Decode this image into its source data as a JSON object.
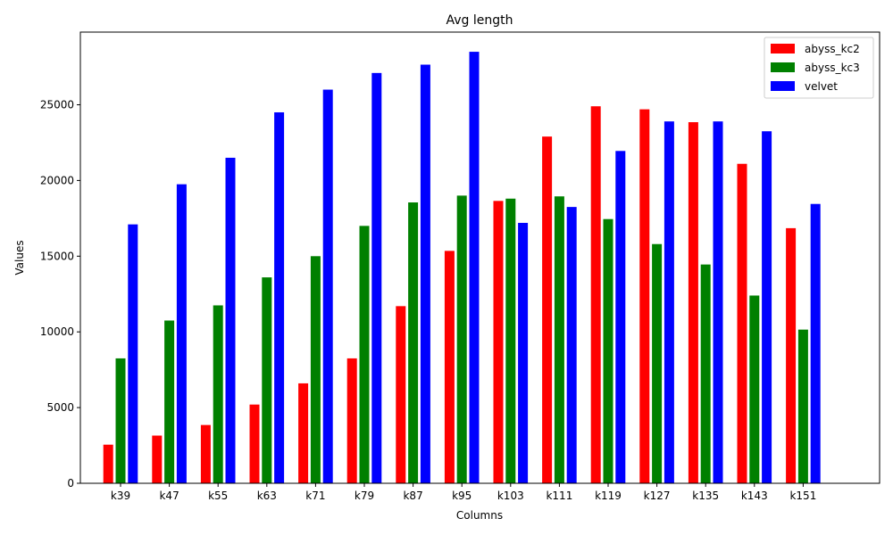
{
  "chart_data": {
    "type": "bar",
    "title": "Avg length",
    "xlabel": "Columns",
    "ylabel": "Values",
    "ylim": [
      0,
      29800
    ],
    "yticks": [
      0,
      5000,
      10000,
      15000,
      20000,
      25000
    ],
    "grid": false,
    "legend_position": "top-right",
    "categories": [
      "k39",
      "k47",
      "k55",
      "k63",
      "k71",
      "k79",
      "k87",
      "k95",
      "k103",
      "k111",
      "k119",
      "k127",
      "k135",
      "k143",
      "k151"
    ],
    "series": [
      {
        "name": "abyss_kc2",
        "color": "#ff0000",
        "values": [
          2550,
          3150,
          3850,
          5200,
          6600,
          8250,
          11700,
          15350,
          18650,
          22900,
          24900,
          24700,
          23850,
          21100,
          16850
        ]
      },
      {
        "name": "abyss_kc3",
        "color": "#008000",
        "values": [
          8250,
          10750,
          11750,
          13600,
          15000,
          17000,
          18550,
          19000,
          18800,
          18950,
          17450,
          15800,
          14450,
          12400,
          10150
        ]
      },
      {
        "name": "velvet",
        "color": "#0000ff",
        "values": [
          17100,
          19750,
          21500,
          24500,
          26000,
          27100,
          27650,
          28500,
          17200,
          18250,
          21950,
          23900,
          23900,
          23250,
          18450
        ]
      }
    ]
  }
}
